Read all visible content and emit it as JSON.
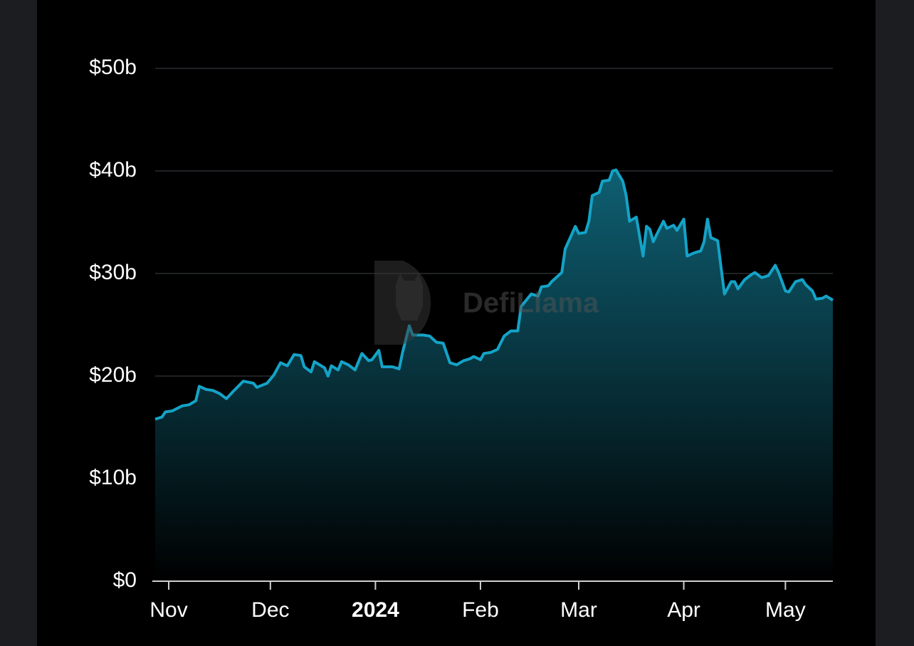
{
  "chart_data": {
    "type": "area",
    "watermark": "DefiLlama",
    "x": [
      "2023-10-28",
      "2023-10-30",
      "2023-10-31",
      "2023-11-02",
      "2023-11-05",
      "2023-11-07",
      "2023-11-09",
      "2023-11-10",
      "2023-11-12",
      "2023-11-14",
      "2023-11-16",
      "2023-11-18",
      "2023-11-20",
      "2023-11-23",
      "2023-11-26",
      "2023-11-27",
      "2023-11-30",
      "2023-12-02",
      "2023-12-04",
      "2023-12-06",
      "2023-12-08",
      "2023-12-10",
      "2023-12-11",
      "2023-12-13",
      "2023-12-14",
      "2023-12-17",
      "2023-12-18",
      "2023-12-19",
      "2023-12-21",
      "2023-12-22",
      "2023-12-24",
      "2023-12-26",
      "2023-12-28",
      "2023-12-30",
      "2023-12-31",
      "2024-01-02",
      "2024-01-03",
      "2024-01-06",
      "2024-01-08",
      "2024-01-09",
      "2024-01-11",
      "2024-01-12",
      "2024-01-15",
      "2024-01-17",
      "2024-01-19",
      "2024-01-21",
      "2024-01-23",
      "2024-01-25",
      "2024-01-27",
      "2024-01-29",
      "2024-01-30",
      "2024-02-01",
      "2024-02-02",
      "2024-02-04",
      "2024-02-06",
      "2024-02-08",
      "2024-02-10",
      "2024-02-12",
      "2024-02-13",
      "2024-02-16",
      "2024-02-18",
      "2024-02-19",
      "2024-02-21",
      "2024-02-22",
      "2024-02-25",
      "2024-02-26",
      "2024-02-29",
      "2024-03-01",
      "2024-03-03",
      "2024-03-04",
      "2024-03-05",
      "2024-03-07",
      "2024-03-08",
      "2024-03-10",
      "2024-03-11",
      "2024-03-12",
      "2024-03-14",
      "2024-03-15",
      "2024-03-16",
      "2024-03-18",
      "2024-03-20",
      "2024-03-21",
      "2024-03-22",
      "2024-03-23",
      "2024-03-24",
      "2024-03-26",
      "2024-03-27",
      "2024-03-29",
      "2024-03-30",
      "2024-04-01",
      "2024-04-02",
      "2024-04-04",
      "2024-04-06",
      "2024-04-07",
      "2024-04-08",
      "2024-04-09",
      "2024-04-11",
      "2024-04-13",
      "2024-04-15",
      "2024-04-16",
      "2024-04-17",
      "2024-04-19",
      "2024-04-21",
      "2024-04-22",
      "2024-04-24",
      "2024-04-26",
      "2024-04-28",
      "2024-04-29",
      "2024-05-01",
      "2024-05-02",
      "2024-05-04",
      "2024-05-06",
      "2024-05-07",
      "2024-05-09",
      "2024-05-10",
      "2024-05-12",
      "2024-05-13",
      "2024-05-15"
    ],
    "series": [
      {
        "color": "#14a3c7",
        "values": [
          15.8,
          16.0,
          16.5,
          16.6,
          17.1,
          17.2,
          17.6,
          19.0,
          18.7,
          18.6,
          18.3,
          17.8,
          18.5,
          19.5,
          19.3,
          18.9,
          19.3,
          20.1,
          21.3,
          21.0,
          22.1,
          22.0,
          20.9,
          20.4,
          21.4,
          20.8,
          20.0,
          21.0,
          20.6,
          21.4,
          21.1,
          20.6,
          22.2,
          21.5,
          21.6,
          22.5,
          20.9,
          20.9,
          20.7,
          22.3,
          24.9,
          24.0,
          24.0,
          23.9,
          23.3,
          23.2,
          21.3,
          21.1,
          21.5,
          21.7,
          21.9,
          21.6,
          22.2,
          22.3,
          22.6,
          23.9,
          24.4,
          24.4,
          26.8,
          28.0,
          27.8,
          28.7,
          28.8,
          29.2,
          30.1,
          32.4,
          34.6,
          33.9,
          34.0,
          35.1,
          37.6,
          37.9,
          39.0,
          39.1,
          40.0,
          40.1,
          39.0,
          37.6,
          35.1,
          35.5,
          31.7,
          34.6,
          34.3,
          33.1,
          33.8,
          35.1,
          34.4,
          34.7,
          34.2,
          35.3,
          31.7,
          32.0,
          32.2,
          33.1,
          35.3,
          33.5,
          33.2,
          28.0,
          29.2,
          29.2,
          28.5,
          29.4,
          29.9,
          30.1,
          29.6,
          29.8,
          30.8,
          30.1,
          28.3,
          28.2,
          29.2,
          29.4,
          28.9,
          28.3,
          27.5,
          27.6,
          27.8,
          27.4
        ]
      }
    ],
    "xlim": [
      "2023-10-28",
      "2024-05-15"
    ],
    "xticks": [
      {
        "value": "2023-11-01",
        "label": "Nov"
      },
      {
        "value": "2023-12-01",
        "label": "Dec"
      },
      {
        "value": "2024-01-01",
        "label": "2024"
      },
      {
        "value": "2024-02-01",
        "label": "Feb"
      },
      {
        "value": "2024-03-01",
        "label": "Mar"
      },
      {
        "value": "2024-04-01",
        "label": "Apr"
      },
      {
        "value": "2024-05-01",
        "label": "May"
      }
    ],
    "ylim": [
      0,
      50
    ],
    "yticks": [
      {
        "value": 0,
        "label": "$0"
      },
      {
        "value": 10,
        "label": "$10b"
      },
      {
        "value": 20,
        "label": "$20b"
      },
      {
        "value": 30,
        "label": "$30b"
      },
      {
        "value": 40,
        "label": "$40b"
      },
      {
        "value": 50,
        "label": "$50b"
      }
    ],
    "grid": true
  }
}
